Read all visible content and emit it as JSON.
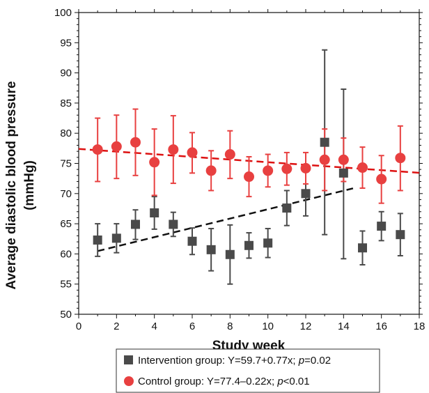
{
  "chart_data": {
    "type": "scatter",
    "xlabel": "Study week",
    "ylabel": [
      "Average diastolic blood pressure",
      "(mmHg)"
    ],
    "xlim": [
      0,
      18
    ],
    "ylim": [
      50,
      100
    ],
    "xticks": [
      0,
      2,
      4,
      6,
      8,
      10,
      12,
      14,
      16,
      18
    ],
    "yticks": [
      50,
      55,
      60,
      65,
      70,
      75,
      80,
      85,
      90,
      95,
      100
    ],
    "grid": false,
    "legend_position": "bottom",
    "series": [
      {
        "name": "Intervention group",
        "equation": "Y=59.7+0.77x",
        "p_label": "p",
        "p_value": "=0.02",
        "marker": "square",
        "color": "#4a4a4a",
        "x": [
          1,
          2,
          3,
          4,
          5,
          6,
          7,
          8,
          9,
          10,
          11,
          12,
          13,
          14,
          15,
          16,
          17
        ],
        "y": [
          62.3,
          62.6,
          64.9,
          66.8,
          64.9,
          62.1,
          60.7,
          59.9,
          61.4,
          61.8,
          67.6,
          70.0,
          78.5,
          73.4,
          61.0,
          64.6,
          63.2
        ],
        "err_low": [
          59.6,
          60.2,
          62.4,
          64.1,
          62.9,
          59.9,
          57.2,
          55.0,
          59.3,
          59.4,
          64.7,
          66.3,
          63.2,
          59.2,
          58.2,
          62.2,
          59.7
        ],
        "err_high": [
          65.0,
          65.0,
          67.3,
          69.5,
          66.9,
          64.3,
          64.2,
          64.8,
          63.5,
          64.2,
          70.5,
          73.7,
          93.8,
          87.3,
          63.8,
          67.0,
          66.7
        ],
        "trend": {
          "intercept": 59.7,
          "slope": 0.77,
          "x_range": [
            1,
            14.5
          ],
          "color": "#111111"
        }
      },
      {
        "name": "Control group",
        "equation": "Y=77.4–0.22x",
        "p_label": "p",
        "p_value": "<0.01",
        "marker": "circle",
        "color": "#e84040",
        "x": [
          1,
          2,
          3,
          4,
          5,
          6,
          7,
          8,
          9,
          10,
          11,
          12,
          13,
          14,
          15,
          16,
          17
        ],
        "y": [
          77.3,
          77.8,
          78.5,
          75.2,
          77.3,
          76.8,
          73.8,
          76.5,
          72.8,
          73.8,
          74.1,
          74.2,
          75.6,
          75.6,
          74.3,
          72.4,
          75.9
        ],
        "err_low": [
          72.0,
          72.5,
          73.0,
          69.7,
          71.7,
          73.4,
          70.5,
          72.5,
          69.5,
          71.1,
          71.4,
          71.6,
          70.5,
          72.0,
          70.9,
          68.4,
          70.5
        ],
        "err_high": [
          82.5,
          83.0,
          84.0,
          80.7,
          82.9,
          80.1,
          77.1,
          80.4,
          76.1,
          76.5,
          76.8,
          76.8,
          80.7,
          79.2,
          77.7,
          76.3,
          81.2
        ],
        "trend": {
          "intercept": 77.4,
          "slope": -0.22,
          "x_range": [
            0,
            18
          ],
          "color": "#dd1111"
        }
      }
    ]
  }
}
